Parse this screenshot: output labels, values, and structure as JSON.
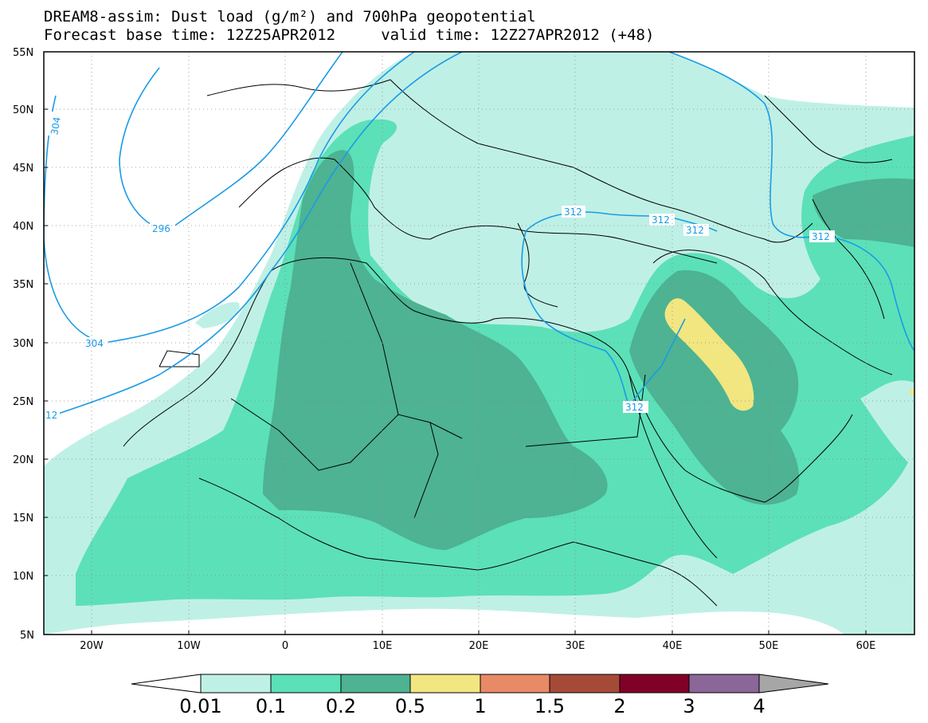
{
  "title": {
    "line1": "DREAM8-assim: Dust load (g/m²) and 700hPa geopotential",
    "line2": "Forecast base time: 12Z25APR2012     valid time: 12Z27APR2012 (+48)"
  },
  "map": {
    "lat_labels": [
      "55N",
      "50N",
      "45N",
      "40N",
      "35N",
      "30N",
      "25N",
      "20N",
      "15N",
      "10N",
      "5N"
    ],
    "lon_labels": [
      "20W",
      "10W",
      "0",
      "10E",
      "20E",
      "30E",
      "40E",
      "50E",
      "60E"
    ],
    "contour_labels": [
      "304",
      "296",
      "304",
      "12",
      "312",
      "312",
      "312",
      "312",
      "312"
    ],
    "colors": {
      "land_background": "#ffffff",
      "coastline": "#000000",
      "contour": "#1a9be6"
    }
  },
  "legend": {
    "labels": [
      "0.01",
      "0.1",
      "0.2",
      "0.5",
      "1",
      "1.5",
      "2",
      "3",
      "4"
    ],
    "colors": [
      "#ffffff",
      "#bff0e6",
      "#5ce0b8",
      "#4db392",
      "#f2e680",
      "#e88a66",
      "#a64a38",
      "#800028",
      "#8a6699",
      "#a6a6a6"
    ]
  }
}
